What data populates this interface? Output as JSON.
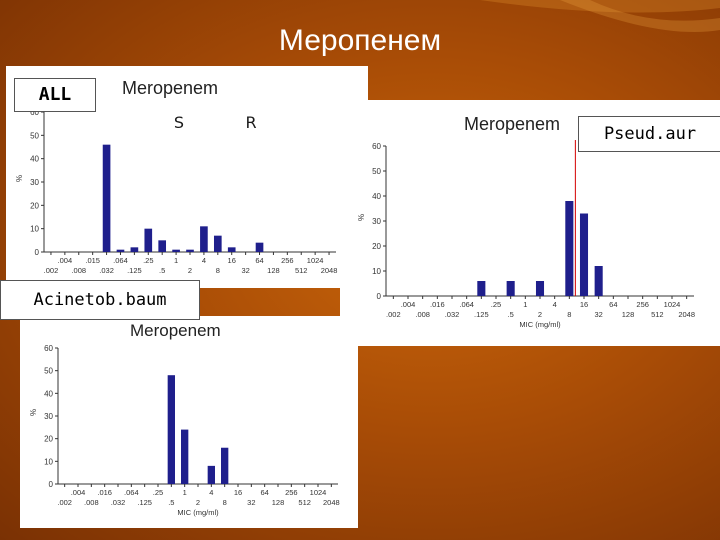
{
  "slide": {
    "title": "Меропенем"
  },
  "colors": {
    "bar": "#1f1f8c",
    "breakpoint": "#d40000"
  },
  "chart_data": [
    {
      "id": "all",
      "type": "bar",
      "group_label": "ALL",
      "title": "Meropenem",
      "ylabel": "%",
      "xlabel": "",
      "ylim": [
        0,
        60
      ],
      "yticks": [
        "0",
        "10",
        "20",
        "30",
        "40",
        "50",
        "60"
      ],
      "xticks_top": [
        ".004",
        ".015",
        ".064",
        ".25",
        "1",
        "4",
        "16",
        "64",
        "256",
        "1024"
      ],
      "xticks_bottom": [
        ".002",
        ".008",
        ".032",
        ".125",
        ".5",
        "2",
        "8",
        "32",
        "128",
        "512",
        "2048"
      ],
      "bars": [
        {
          "mic": ".032",
          "value": 46
        },
        {
          "mic": ".064",
          "value": 1
        },
        {
          "mic": ".125",
          "value": 2
        },
        {
          "mic": ".25",
          "value": 10
        },
        {
          "mic": ".5",
          "value": 5
        },
        {
          "mic": "1",
          "value": 1
        },
        {
          "mic": "2",
          "value": 1
        },
        {
          "mic": "4",
          "value": 11
        },
        {
          "mic": "8",
          "value": 7
        },
        {
          "mic": "16",
          "value": 2
        },
        {
          "mic": "64",
          "value": 4
        }
      ],
      "s_label": "S",
      "r_label": "R"
    },
    {
      "id": "pseudomonas",
      "type": "bar",
      "group_label": "Pseud.aur",
      "title": "Meropenem",
      "ylabel": "%",
      "xlabel": "MIC (mg/ml)",
      "ylim": [
        0,
        60
      ],
      "yticks": [
        "0",
        "10",
        "20",
        "30",
        "40",
        "50",
        "60"
      ],
      "xticks_top": [
        ".004",
        ".016",
        ".064",
        ".25",
        "1",
        "4",
        "16",
        "64",
        "256",
        "1024"
      ],
      "xticks_bottom": [
        ".002",
        ".008",
        ".032",
        ".125",
        ".5",
        "2",
        "8",
        "32",
        "128",
        "512",
        "2048"
      ],
      "bars": [
        {
          "mic": ".125",
          "value": 6
        },
        {
          "mic": ".5",
          "value": 6
        },
        {
          "mic": "2",
          "value": 6
        },
        {
          "mic": "8",
          "value": 38
        },
        {
          "mic": "16",
          "value": 33
        },
        {
          "mic": "32",
          "value": 12
        }
      ],
      "breakpoint_mic": "8"
    },
    {
      "id": "acinetobacter",
      "type": "bar",
      "group_label": "Acinetob.baum",
      "title": "Meropenem",
      "ylabel": "%",
      "xlabel": "MIC (mg/ml)",
      "ylim": [
        0,
        60
      ],
      "yticks": [
        "0",
        "10",
        "20",
        "30",
        "40",
        "50",
        "60"
      ],
      "xticks_top": [
        ".004",
        ".016",
        ".064",
        ".25",
        "1",
        "4",
        "16",
        "64",
        "256",
        "1024"
      ],
      "xticks_bottom": [
        ".002",
        ".008",
        ".032",
        ".125",
        ".5",
        "2",
        "8",
        "32",
        "128",
        "512",
        "2048"
      ],
      "bars": [
        {
          "mic": ".5",
          "value": 48
        },
        {
          "mic": "1",
          "value": 24
        },
        {
          "mic": "4",
          "value": 8
        },
        {
          "mic": "8",
          "value": 16
        }
      ]
    }
  ]
}
